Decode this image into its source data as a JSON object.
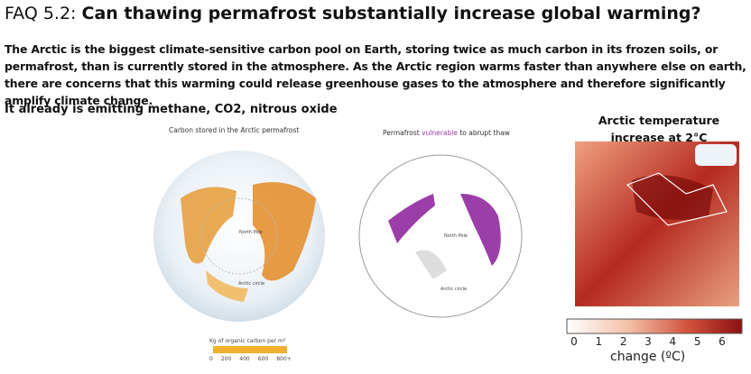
{
  "header": {
    "prefix": "FAQ 5.2:",
    "title": "Can thawing permafrost substantially increase global warming?"
  },
  "intro": "The Arctic is the biggest climate-sensitive carbon pool on Earth, storing twice as much carbon in its frozen soils, or permafrost, than is currently stored in the atmosphere. As the Arctic region warms faster than anywhere else on earth, there are concerns that this warming could release greenhouse gases to the atmosphere and therefore significantly amplify climate change.",
  "subheading": "It already is emitting methane, CO2, nitrous oxide",
  "maps": [
    {
      "title": "Carbon stored in the Arctic permafrost",
      "pole_label": "North Pole",
      "circle_label": "Arctic circle",
      "legend_title": "Kg of organic carbon per m²",
      "legend_ticks": [
        "0",
        "200",
        "400",
        "600",
        "800+"
      ]
    },
    {
      "title_parts": [
        "Permafrost",
        "vulnerable",
        "to abrupt thaw"
      ],
      "pole_label": "North Pole",
      "circle_label": "Arctic circle"
    },
    {
      "title": "Arctic temperature increase at 2°C",
      "colorbar_ticks": [
        0,
        1,
        2,
        3,
        4,
        5,
        6
      ],
      "colorbar_label": "change (ºC)"
    }
  ]
}
